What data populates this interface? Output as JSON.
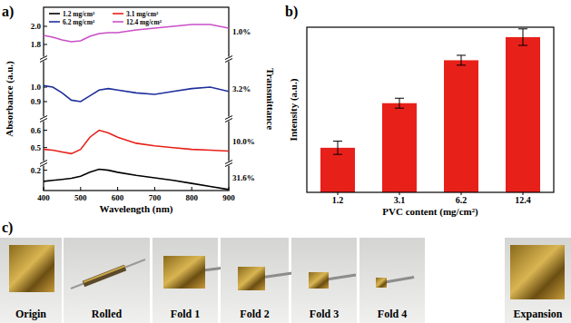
{
  "chart_data": [
    {
      "type": "line",
      "title": "a)",
      "x_label": "Wavelength (nm)",
      "y_label": "Absorbance (a.u.)",
      "y2_label": "Transmittance",
      "xlim": [
        400,
        900
      ],
      "xticks": [
        400,
        500,
        600,
        700,
        800,
        900
      ],
      "x": [
        400,
        425,
        450,
        475,
        500,
        525,
        550,
        575,
        600,
        650,
        700,
        750,
        800,
        850,
        900
      ],
      "legend": "upper left",
      "series": [
        {
          "name": "1.2 mg/cm²",
          "color": "#000000",
          "annotation": "31.6%",
          "ylim": [
            0,
            0.25
          ],
          "yticks": [
            0.2
          ],
          "values": [
            0.09,
            0.1,
            0.11,
            0.12,
            0.14,
            0.18,
            0.21,
            0.2,
            0.18,
            0.15,
            0.125,
            0.1,
            0.07,
            0.04,
            0.01
          ]
        },
        {
          "name": "3.1 mg/cm²",
          "color": "#e8201a",
          "annotation": "10.0%",
          "ylim": [
            0.42,
            0.65
          ],
          "yticks": [
            0.5,
            0.6
          ],
          "values": [
            0.49,
            0.485,
            0.475,
            0.465,
            0.49,
            0.56,
            0.6,
            0.585,
            0.56,
            0.525,
            0.51,
            0.5,
            0.49,
            0.485,
            0.48
          ]
        },
        {
          "name": "6.2 mg/cm²",
          "color": "#1f2f9c",
          "annotation": "3.2%",
          "ylim": [
            0.8,
            1.175
          ],
          "yticks": [
            0.9,
            {
              "value": 1,
              "label": "1.0"
            }
          ],
          "values": [
            1.01,
            1.0,
            0.96,
            0.91,
            0.9,
            0.94,
            0.98,
            0.99,
            0.98,
            0.96,
            0.95,
            0.97,
            0.99,
            1.0,
            0.97
          ]
        },
        {
          "name": "12.4 mg/cm²",
          "color": "#c84fc8",
          "annotation": "1.0%",
          "ylim": [
            1.67,
            2.21
          ],
          "yticks": [
            1.8,
            {
              "value": 2,
              "label": "2.0"
            }
          ],
          "values": [
            1.9,
            1.88,
            1.85,
            1.83,
            1.84,
            1.89,
            1.92,
            1.93,
            1.93,
            1.96,
            1.98,
            2.0,
            2.02,
            2.02,
            1.98
          ]
        }
      ]
    },
    {
      "type": "bar",
      "title": "b)",
      "x_label": "PVC content (mg/cm²)",
      "y_label": "Intensity (a.u.)",
      "categories": [
        "1.2",
        "3.1",
        "6.2",
        "12.4"
      ],
      "values": [
        27,
        54,
        80,
        94
      ],
      "errors": [
        4,
        3,
        3,
        5
      ],
      "color": "#e8201a",
      "ylim": [
        0,
        100
      ],
      "tick_labels": "x"
    }
  ],
  "photos": {
    "title": "c)",
    "captions": [
      "Origin",
      "Rolled",
      "Fold 1",
      "Fold 2",
      "Fold 3",
      "Fold 4",
      "Expansion"
    ]
  }
}
